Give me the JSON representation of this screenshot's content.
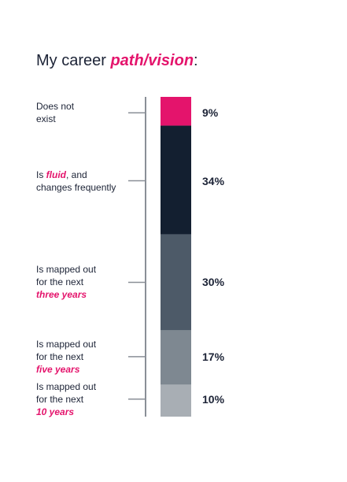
{
  "title": {
    "prefix": "My career ",
    "accent": "path/vision",
    "suffix": ":"
  },
  "colors": {
    "accent": "#e4146c",
    "text": "#1c2336",
    "axis": "#8a8f97",
    "segments": [
      "#e4146c",
      "#131f30",
      "#4d5a68",
      "#7e8891",
      "#a8aeb4"
    ]
  },
  "chart_data": {
    "type": "bar",
    "stacked": true,
    "orientation": "vertical",
    "unit": "%",
    "categories": [
      "Does not exist",
      "Is fluid, and changes frequently",
      "Is mapped out for the next three years",
      "Is mapped out for the next five years",
      "Is mapped out for the next 10 years"
    ],
    "values": [
      9,
      34,
      30,
      17,
      10
    ],
    "value_labels": [
      "9%",
      "34%",
      "30%",
      "17%",
      "10%"
    ],
    "label_parts": [
      [
        {
          "t": "Does not",
          "s": "plain"
        },
        {
          "t": "\n",
          "s": "br"
        },
        {
          "t": "exist",
          "s": "plain"
        }
      ],
      [
        {
          "t": "Is ",
          "s": "plain"
        },
        {
          "t": "fluid",
          "s": "em"
        },
        {
          "t": ", and",
          "s": "plain"
        },
        {
          "t": "\n",
          "s": "br"
        },
        {
          "t": "changes frequently",
          "s": "plain"
        }
      ],
      [
        {
          "t": "Is mapped out",
          "s": "plain"
        },
        {
          "t": "\n",
          "s": "br"
        },
        {
          "t": "for the next",
          "s": "plain"
        },
        {
          "t": "\n",
          "s": "br"
        },
        {
          "t": "three years",
          "s": "em"
        }
      ],
      [
        {
          "t": "Is mapped out",
          "s": "plain"
        },
        {
          "t": "\n",
          "s": "br"
        },
        {
          "t": "for the next",
          "s": "plain"
        },
        {
          "t": "\n",
          "s": "br"
        },
        {
          "t": "five years",
          "s": "em"
        }
      ],
      [
        {
          "t": "Is mapped out",
          "s": "plain"
        },
        {
          "t": "\n",
          "s": "br"
        },
        {
          "t": "for the next",
          "s": "plain"
        },
        {
          "t": "\n",
          "s": "br"
        },
        {
          "t": "10 years",
          "s": "em"
        }
      ]
    ]
  }
}
